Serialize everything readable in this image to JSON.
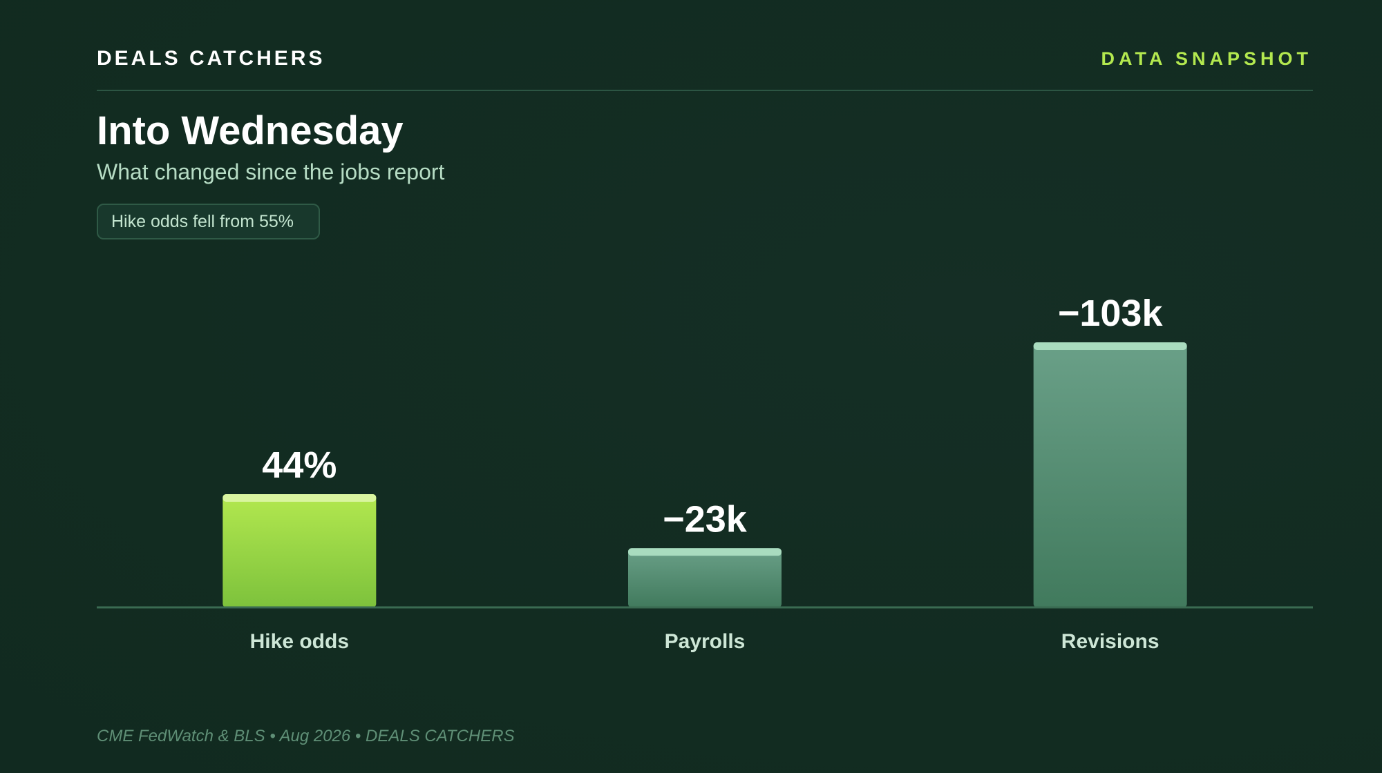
{
  "header": {
    "brand": "DEALS CATCHERS",
    "tag": "DATA SNAPSHOT"
  },
  "title": "Into Wednesday",
  "subtitle": "What changed since the jobs report",
  "note": "Hike odds fell from 55%",
  "chart_data": {
    "type": "bar",
    "title": "Into Wednesday",
    "subtitle": "What changed since the jobs report",
    "categories": [
      "Hike odds",
      "Payrolls",
      "Revisions"
    ],
    "series": [
      {
        "values": [
          44,
          -23,
          -103
        ],
        "labels": [
          "44%",
          "−23k",
          "−103k"
        ]
      }
    ],
    "annotation": "Hike odds fell from 55%",
    "grid": false,
    "legend": "none",
    "colors": {
      "highlight": "#b3e84f",
      "highlight_dark": "#7dc23c",
      "muted": "#6aa088",
      "muted_dark": "#417a5d",
      "cap_highlight": "#d9f5a0",
      "cap_muted": "#a9dcbf",
      "baseline": "#3a6b52"
    }
  },
  "footer": {
    "source": "CME FedWatch & BLS • Aug 2026 • DEALS CATCHERS"
  }
}
